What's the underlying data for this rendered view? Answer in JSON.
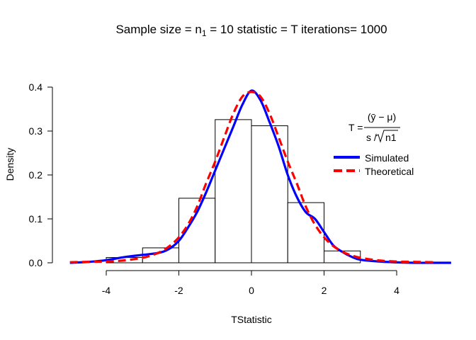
{
  "chart_data": {
    "type": "bar",
    "title": {
      "prefix": "Sample size = n",
      "subscript": "1",
      "suffix": " = 10 statistic = T iterations= 1000"
    },
    "xlabel": "TStatistic",
    "ylabel": "Density",
    "xlim": [
      -5.3,
      5.5
    ],
    "ylim": [
      0,
      0.4
    ],
    "x_ticks": [
      -4,
      -2,
      0,
      2,
      4
    ],
    "x_tick_labels": [
      "-4",
      "-2",
      "0",
      "2",
      "4"
    ],
    "y_ticks": [
      0.0,
      0.1,
      0.2,
      0.3,
      0.4
    ],
    "y_tick_labels": [
      "0.0",
      "0.1",
      "0.2",
      "0.3",
      "0.4"
    ],
    "histogram": {
      "bin_edges": [
        -4,
        -3,
        -2,
        -1,
        0,
        1,
        2,
        3
      ],
      "values": [
        0.012,
        0.034,
        0.147,
        0.326,
        0.312,
        0.137,
        0.027
      ]
    },
    "series": [
      {
        "name": "Simulated",
        "color": "#0000ff",
        "style": "solid",
        "x": [
          -5.0,
          -4.5,
          -4.0,
          -3.5,
          -3.0,
          -2.6,
          -2.3,
          -2.0,
          -1.75,
          -1.5,
          -1.25,
          -1.0,
          -0.75,
          -0.5,
          -0.25,
          0.0,
          0.25,
          0.5,
          0.75,
          1.0,
          1.25,
          1.5,
          1.75,
          2.0,
          2.25,
          2.5,
          2.75,
          3.0,
          3.5,
          4.0,
          4.5,
          5.0,
          5.5
        ],
        "y": [
          0.0,
          0.002,
          0.006,
          0.013,
          0.018,
          0.022,
          0.03,
          0.05,
          0.08,
          0.115,
          0.16,
          0.21,
          0.26,
          0.31,
          0.36,
          0.392,
          0.37,
          0.32,
          0.265,
          0.2,
          0.15,
          0.115,
          0.1,
          0.07,
          0.04,
          0.025,
          0.014,
          0.007,
          0.003,
          0.001,
          0.0,
          0.0,
          0.0
        ]
      },
      {
        "name": "Theoretical",
        "color": "#ff0000",
        "style": "dashed",
        "x": [
          -5.0,
          -4.5,
          -4.0,
          -3.5,
          -3.0,
          -2.75,
          -2.5,
          -2.25,
          -2.0,
          -1.75,
          -1.5,
          -1.25,
          -1.0,
          -0.75,
          -0.5,
          -0.25,
          0.0,
          0.25,
          0.5,
          0.75,
          1.0,
          1.25,
          1.5,
          1.75,
          2.0,
          2.25,
          2.5,
          2.75,
          3.0,
          3.5,
          4.0,
          4.5,
          5.0
        ],
        "y": [
          0.0012,
          0.0021,
          0.0028,
          0.0054,
          0.0115,
          0.017,
          0.0253,
          0.0384,
          0.0581,
          0.0869,
          0.1274,
          0.1806,
          0.2304,
          0.2857,
          0.3397,
          0.3784,
          0.3891,
          0.3784,
          0.3397,
          0.2857,
          0.2304,
          0.1806,
          0.1274,
          0.0869,
          0.0581,
          0.0384,
          0.0253,
          0.017,
          0.0115,
          0.0054,
          0.0028,
          0.0021,
          0.0012
        ]
      }
    ],
    "legend": {
      "placement": "right",
      "formula": {
        "lhs": "T =",
        "numerator": "(ȳ − μ)",
        "denominator_prefix": "s /",
        "denominator_radicand": "n1"
      },
      "items": [
        {
          "label": "Simulated",
          "color": "#0000ff",
          "style": "solid"
        },
        {
          "label": "Theoretical",
          "color": "#ff0000",
          "style": "dashed"
        }
      ]
    }
  }
}
